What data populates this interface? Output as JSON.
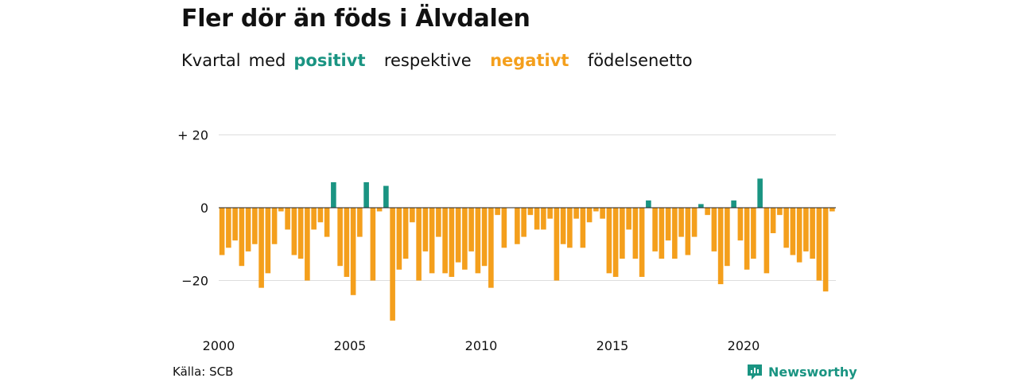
{
  "title": "Fler dör än föds i Älvdalen",
  "subtitle": {
    "part1": "Kvartal",
    "part2": "med",
    "positive": "positivt",
    "part3": "respektive",
    "negative": "negativt",
    "part4": "födelsenetto"
  },
  "source": "Källa: SCB",
  "brand": "Newsworthy",
  "colors": {
    "positive": "#1a9482",
    "negative": "#f49f1c",
    "grid": "#dddddd",
    "zero": "#222222"
  },
  "chart_data": {
    "type": "bar",
    "title": "Fler dör än föds i Älvdalen",
    "xlabel": "",
    "ylabel": "",
    "ylim": [
      -31,
      20
    ],
    "y_ticks": [
      {
        "value": 20,
        "label": "+ 20"
      },
      {
        "value": 0,
        "label": "0"
      },
      {
        "value": -20,
        "label": "−20"
      }
    ],
    "x_ticks": [
      {
        "year": 2000,
        "label": "2000"
      },
      {
        "year": 2005,
        "label": "2005"
      },
      {
        "year": 2010,
        "label": "2010"
      },
      {
        "year": 2015,
        "label": "2015"
      },
      {
        "year": 2020,
        "label": "2020"
      }
    ],
    "start_period": "2000 Q1",
    "grid": true,
    "values": [
      -13,
      -11,
      -9,
      -16,
      -12,
      -10,
      -22,
      -18,
      -10,
      -1,
      -6,
      -13,
      -14,
      -20,
      -6,
      -4,
      -8,
      7,
      -16,
      -19,
      -24,
      -8,
      7,
      -20,
      -1,
      6,
      -31,
      -17,
      -14,
      -4,
      -20,
      -12,
      -18,
      -8,
      -18,
      -19,
      -15,
      -17,
      -12,
      -18,
      -16,
      -22,
      -2,
      -11,
      0,
      -10,
      -8,
      -2,
      -6,
      -6,
      -3,
      -20,
      -10,
      -11,
      -3,
      -11,
      -4,
      -1,
      -3,
      -18,
      -19,
      -14,
      -6,
      -14,
      -19,
      2,
      -12,
      -14,
      -9,
      -14,
      -8,
      -13,
      -8,
      1,
      -2,
      -12,
      -21,
      -16,
      2,
      -9,
      -17,
      -14,
      8,
      -18,
      -7,
      -2,
      -11,
      -13,
      -15,
      -12,
      -14,
      -20,
      -23,
      -1
    ]
  }
}
